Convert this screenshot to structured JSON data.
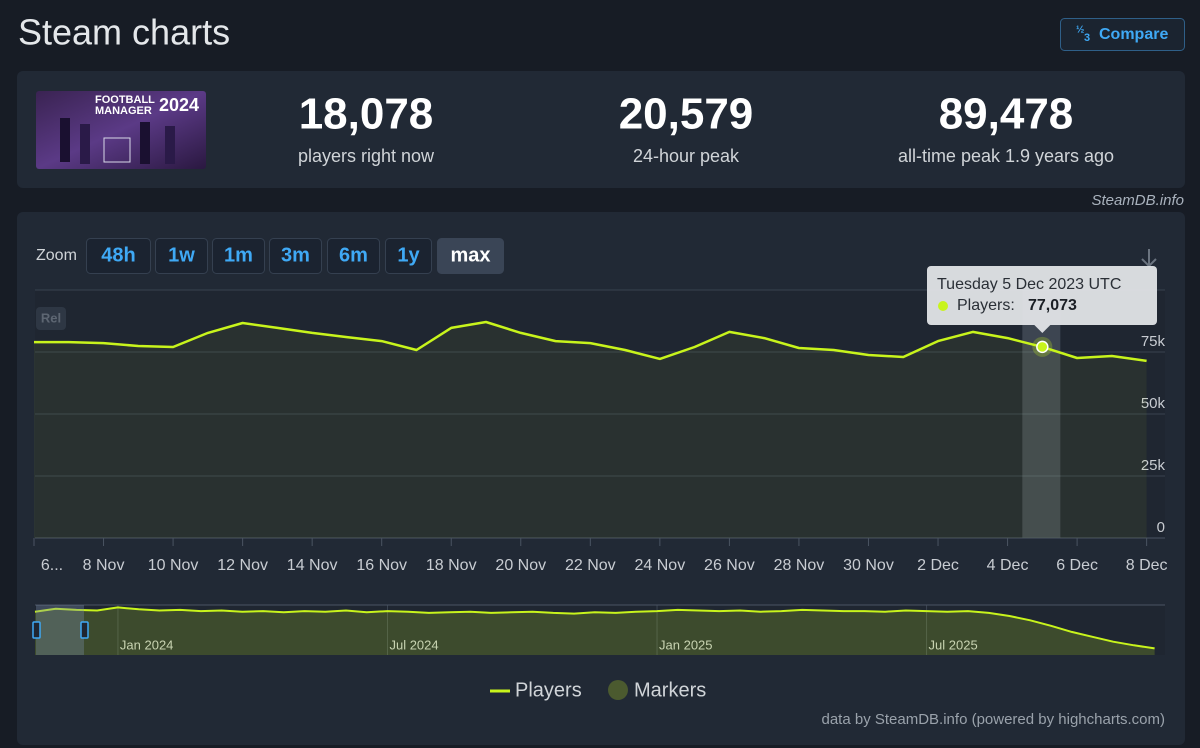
{
  "header": {
    "title": "Steam charts",
    "compare": "Compare"
  },
  "game": {
    "logo_line1": "FOOTBALL",
    "logo_line2": "MANAGER",
    "logo_year": "2024"
  },
  "stats": [
    {
      "value": "18,078",
      "label": "players right now"
    },
    {
      "value": "20,579",
      "label": "24-hour peak"
    },
    {
      "value": "89,478",
      "label": "all-time peak 1.9 years ago"
    }
  ],
  "source": "SteamDB.info",
  "zoom": {
    "label": "Zoom",
    "buttons": [
      "48h",
      "1w",
      "1m",
      "3m",
      "6m",
      "1y",
      "max"
    ],
    "active": 6
  },
  "chart_data": {
    "type": "line",
    "badge": "Rel",
    "categories": [
      "6...",
      null,
      "8 Nov",
      null,
      "10 Nov",
      null,
      "12 Nov",
      null,
      "14 Nov",
      null,
      "16 Nov",
      null,
      "18 Nov",
      null,
      "20 Nov",
      null,
      "22 Nov",
      null,
      "24 Nov",
      null,
      "26 Nov",
      null,
      "28 Nov",
      null,
      "30 Nov",
      null,
      "2 Dec",
      null,
      "4 Dec",
      null,
      "6 Dec",
      null,
      "8 Dec"
    ],
    "series": [
      {
        "name": "Players",
        "color": "#c8f41c",
        "values": [
          79000,
          79000,
          78600,
          77400,
          77000,
          82700,
          86700,
          84700,
          82700,
          81000,
          79400,
          75800,
          84700,
          87100,
          82700,
          79400,
          78600,
          75800,
          72200,
          77000,
          83100,
          80600,
          76600,
          75800,
          73800,
          73000,
          79400,
          83100,
          80600,
          77073,
          72600,
          73400,
          71400
        ]
      }
    ],
    "extra_legend": {
      "name": "Markers",
      "color": "#4b5a2f"
    },
    "ylim": [
      0,
      100000
    ],
    "yticks": [
      0,
      {
        "value": 25000,
        "label": "25k"
      },
      {
        "value": 50000,
        "label": "50k"
      },
      {
        "value": 75000,
        "label": "75k"
      }
    ],
    "grid": true,
    "tooltip": {
      "index": 29,
      "title": "Tuesday 5 Dec 2023 UTC",
      "label": "Players:",
      "value": "77,073"
    },
    "navigator": {
      "color": "#c8f41c",
      "values": [
        79000,
        84000,
        82000,
        81000,
        86000,
        83000,
        81000,
        82000,
        80000,
        81000,
        79000,
        80000,
        78000,
        80000,
        79000,
        81000,
        78000,
        80000,
        79000,
        77000,
        78000,
        79000,
        77000,
        78000,
        79000,
        77000,
        76000,
        78000,
        77000,
        79000,
        80000,
        82000,
        81000,
        80000,
        81000,
        79000,
        80000,
        82000,
        81000,
        80000,
        80000,
        79000,
        81000,
        80000,
        79000,
        80000,
        77000,
        72000,
        65000,
        56000,
        46000,
        38000,
        30000,
        24000,
        19000
      ],
      "xlim": [
        0,
        54.5
      ],
      "ylim": [
        0,
        90000
      ],
      "xticks": [
        {
          "value": 4,
          "label": "Jan 2024"
        },
        {
          "value": 17,
          "label": "Jul 2024"
        },
        {
          "value": 30,
          "label": "Jan 2025"
        },
        {
          "value": 43,
          "label": "Jul 2025"
        }
      ]
    }
  },
  "footer": "data by SteamDB.info (powered by highcharts.com)"
}
